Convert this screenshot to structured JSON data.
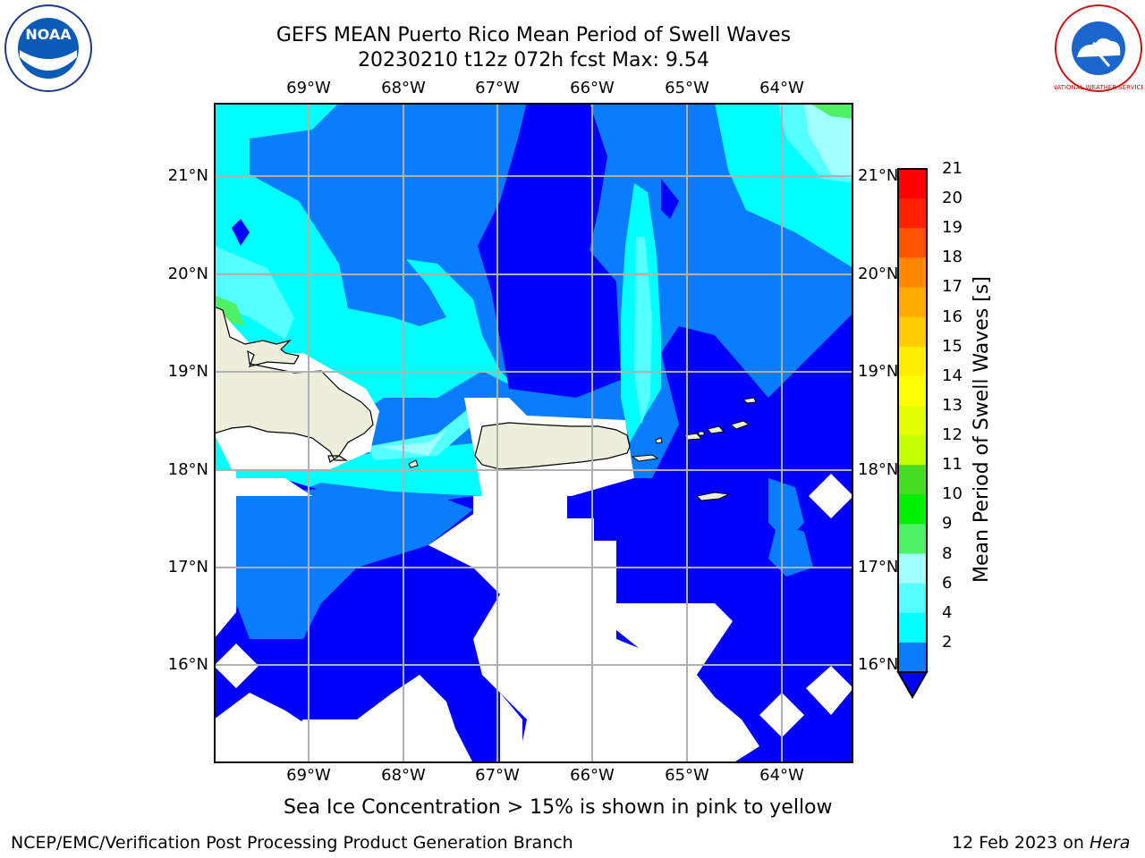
{
  "header": {
    "title_line1": "GEFS MEAN Puerto Rico Mean Period of Swell Waves",
    "title_line2": "20230210 t12z 072h fcst   Max: 9.54"
  },
  "logos": {
    "left": "NOAA",
    "right": "NATIONAL WEATHER SERVICE"
  },
  "map": {
    "longitude_labels": [
      "69°W",
      "68°W",
      "67°W",
      "66°W",
      "65°W",
      "64°W"
    ],
    "latitude_labels": [
      "21°N",
      "20°N",
      "19°N",
      "18°N",
      "17°N",
      "16°N"
    ],
    "ocean_fill_colors": {
      "deep_blue": "#0000ff",
      "mid_blue": "#0a7dff",
      "cyan": "#00ffff",
      "light_cyan": "#55ffff",
      "pale_cyan": "#a0ffff",
      "green": "#4ef065",
      "land": "#eeeedd"
    }
  },
  "colorbar": {
    "title": "Mean Period of Swell Waves [s]",
    "labels": [
      "21",
      "20",
      "19",
      "18",
      "17",
      "16",
      "15",
      "14",
      "13",
      "12",
      "11",
      "10",
      "9",
      "8",
      "6",
      "4",
      "2"
    ],
    "colors_top_to_bottom": [
      "#ff0000",
      "#ff2200",
      "#ff5500",
      "#ff8800",
      "#ffaa00",
      "#ffcc00",
      "#ffee00",
      "#ffff00",
      "#e4ff00",
      "#c4ff00",
      "#44dd22",
      "#00ee00",
      "#4ef065",
      "#a0ffff",
      "#55ffff",
      "#00ffff",
      "#0a7dff"
    ],
    "extend_color": "#0000ff"
  },
  "note": "Sea Ice Concentration > 15% is shown in pink to yellow",
  "footer": {
    "left": "NCEP/EMC/Verification Post Processing Product Generation Branch",
    "date": "12 Feb 2023 on",
    "machine": "Hera"
  }
}
